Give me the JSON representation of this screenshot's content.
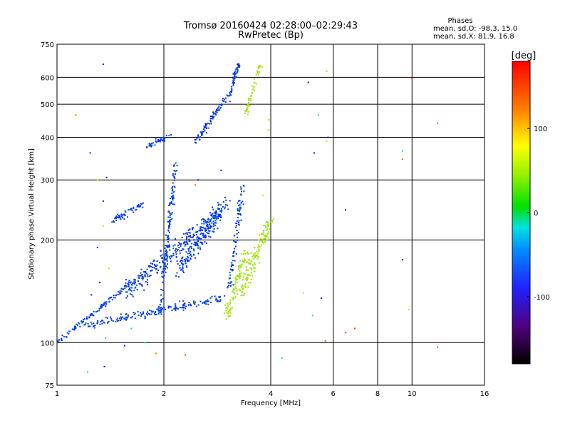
{
  "chart_data": {
    "type": "scatter",
    "title": "Tromsø 20160424 02:28:00–02:29:43",
    "subtitle": "RwPretec (Bp)",
    "xlabel": "Frequency [MHz]",
    "ylabel": "Stationary phase Virtual Height [km]",
    "x_scale": "log",
    "y_scale": "log",
    "xlim": [
      1,
      16
    ],
    "ylim": [
      75,
      750
    ],
    "x_ticks": [
      1,
      2,
      4,
      6,
      8,
      10,
      16
    ],
    "x_tick_labels": [
      "1",
      "2",
      "4",
      "6",
      "8",
      "10",
      "16"
    ],
    "y_ticks": [
      75,
      100,
      200,
      300,
      400,
      500,
      600,
      750
    ],
    "y_tick_labels": [
      "75",
      "100",
      "200",
      "300",
      "400",
      "500",
      "600",
      "750"
    ],
    "grid": true,
    "stats": {
      "heading": "Phases",
      "line_o": "mean, sd,O: -98.3, 15.0",
      "line_x": "mean, sd,X: 81.9, 16.8"
    },
    "colorbar": {
      "label": "[deg]",
      "range": [
        -180,
        180
      ],
      "ticks": [
        100,
        0,
        -100
      ],
      "tick_labels": [
        "100",
        "0",
        "-100"
      ]
    },
    "series": [
      {
        "name": "O",
        "phase_mean": -98.3,
        "phase_sd": 15.0,
        "clusters": [
          {
            "f0": 1.0,
            "f1": 1.62,
            "h0": 100,
            "h1": 150,
            "n": 110,
            "spread_f": 0.02,
            "spread_h": 0.02
          },
          {
            "f0": 1.2,
            "f1": 2.9,
            "h0": 112,
            "h1": 135,
            "n": 180,
            "spread_f": 0.04,
            "spread_h": 0.04
          },
          {
            "f0": 1.55,
            "f1": 2.8,
            "h0": 140,
            "h1": 235,
            "n": 260,
            "spread_f": 0.05,
            "spread_h": 0.09
          },
          {
            "f0": 1.95,
            "f1": 2.15,
            "h0": 120,
            "h1": 330,
            "n": 140,
            "spread_f": 0.02,
            "spread_h": 0.08
          },
          {
            "f0": 2.2,
            "f1": 3.0,
            "h0": 160,
            "h1": 260,
            "n": 200,
            "spread_f": 0.05,
            "spread_h": 0.08
          },
          {
            "f0": 1.45,
            "f1": 1.75,
            "h0": 228,
            "h1": 256,
            "n": 55,
            "spread_f": 0.03,
            "spread_h": 0.03
          },
          {
            "f0": 1.8,
            "f1": 2.06,
            "h0": 375,
            "h1": 405,
            "n": 45,
            "spread_f": 0.03,
            "spread_h": 0.02
          },
          {
            "f0": 2.45,
            "f1": 2.98,
            "h0": 385,
            "h1": 520,
            "n": 90,
            "spread_f": 0.025,
            "spread_h": 0.03
          },
          {
            "f0": 3.05,
            "f1": 3.25,
            "h0": 520,
            "h1": 660,
            "n": 60,
            "spread_f": 0.02,
            "spread_h": 0.03
          },
          {
            "f0": 3.05,
            "f1": 3.35,
            "h0": 140,
            "h1": 300,
            "n": 90,
            "spread_f": 0.02,
            "spread_h": 0.09
          }
        ]
      },
      {
        "name": "X",
        "phase_mean": 81.9,
        "phase_sd": 16.8,
        "clusters": [
          {
            "f0": 3.0,
            "f1": 3.4,
            "h0": 120,
            "h1": 185,
            "n": 90,
            "spread_f": 0.03,
            "spread_h": 0.06
          },
          {
            "f0": 3.3,
            "f1": 4.0,
            "h0": 140,
            "h1": 230,
            "n": 150,
            "spread_f": 0.04,
            "spread_h": 0.07
          },
          {
            "f0": 3.4,
            "f1": 3.75,
            "h0": 470,
            "h1": 660,
            "n": 55,
            "spread_f": 0.015,
            "spread_h": 0.03
          }
        ]
      }
    ],
    "scattered_points": [
      {
        "x": 1.35,
        "y": 655,
        "phase": -110
      },
      {
        "x": 1.13,
        "y": 465,
        "phase": 140
      },
      {
        "x": 1.24,
        "y": 360,
        "phase": -110
      },
      {
        "x": 1.38,
        "y": 305,
        "phase": -110
      },
      {
        "x": 1.3,
        "y": 300,
        "phase": 100
      },
      {
        "x": 1.35,
        "y": 260,
        "phase": -110
      },
      {
        "x": 1.35,
        "y": 220,
        "phase": 110
      },
      {
        "x": 1.3,
        "y": 190,
        "phase": -110
      },
      {
        "x": 1.4,
        "y": 165,
        "phase": 110
      },
      {
        "x": 1.32,
        "y": 150,
        "phase": -110
      },
      {
        "x": 1.25,
        "y": 138,
        "phase": -110
      },
      {
        "x": 1.37,
        "y": 103,
        "phase": -20
      },
      {
        "x": 1.55,
        "y": 98,
        "phase": -110
      },
      {
        "x": 1.22,
        "y": 82,
        "phase": -20
      },
      {
        "x": 1.36,
        "y": 85,
        "phase": -110
      },
      {
        "x": 1.9,
        "y": 93,
        "phase": 130
      },
      {
        "x": 2.3,
        "y": 92,
        "phase": 150
      },
      {
        "x": 1.77,
        "y": 100,
        "phase": -20
      },
      {
        "x": 1.62,
        "y": 110,
        "phase": -20
      },
      {
        "x": 2.45,
        "y": 290,
        "phase": 150
      },
      {
        "x": 2.9,
        "y": 320,
        "phase": -110
      },
      {
        "x": 2.5,
        "y": 300,
        "phase": -110
      },
      {
        "x": 3.2,
        "y": 640,
        "phase": 140
      },
      {
        "x": 3.95,
        "y": 420,
        "phase": 120
      },
      {
        "x": 3.95,
        "y": 450,
        "phase": 120
      },
      {
        "x": 3.8,
        "y": 270,
        "phase": 100
      },
      {
        "x": 4.3,
        "y": 90,
        "phase": -20
      },
      {
        "x": 4.95,
        "y": 140,
        "phase": 100
      },
      {
        "x": 5.1,
        "y": 580,
        "phase": -110
      },
      {
        "x": 5.25,
        "y": 120,
        "phase": -20
      },
      {
        "x": 5.3,
        "y": 360,
        "phase": -110
      },
      {
        "x": 5.45,
        "y": 465,
        "phase": -20
      },
      {
        "x": 5.55,
        "y": 135,
        "phase": -110
      },
      {
        "x": 5.75,
        "y": 625,
        "phase": 120
      },
      {
        "x": 5.8,
        "y": 400,
        "phase": -110
      },
      {
        "x": 5.75,
        "y": 390,
        "phase": 90
      },
      {
        "x": 5.7,
        "y": 101,
        "phase": 150
      },
      {
        "x": 6.5,
        "y": 245,
        "phase": -110
      },
      {
        "x": 6.5,
        "y": 107,
        "phase": 150
      },
      {
        "x": 6.9,
        "y": 110,
        "phase": 160
      },
      {
        "x": 9.4,
        "y": 365,
        "phase": -20
      },
      {
        "x": 9.4,
        "y": 345,
        "phase": 150
      },
      {
        "x": 9.4,
        "y": 175,
        "phase": -110
      },
      {
        "x": 9.8,
        "y": 125,
        "phase": 100
      },
      {
        "x": 10.0,
        "y": 595,
        "phase": 160
      },
      {
        "x": 11.8,
        "y": 440,
        "phase": 150
      },
      {
        "x": 11.8,
        "y": 97,
        "phase": 150
      }
    ]
  }
}
